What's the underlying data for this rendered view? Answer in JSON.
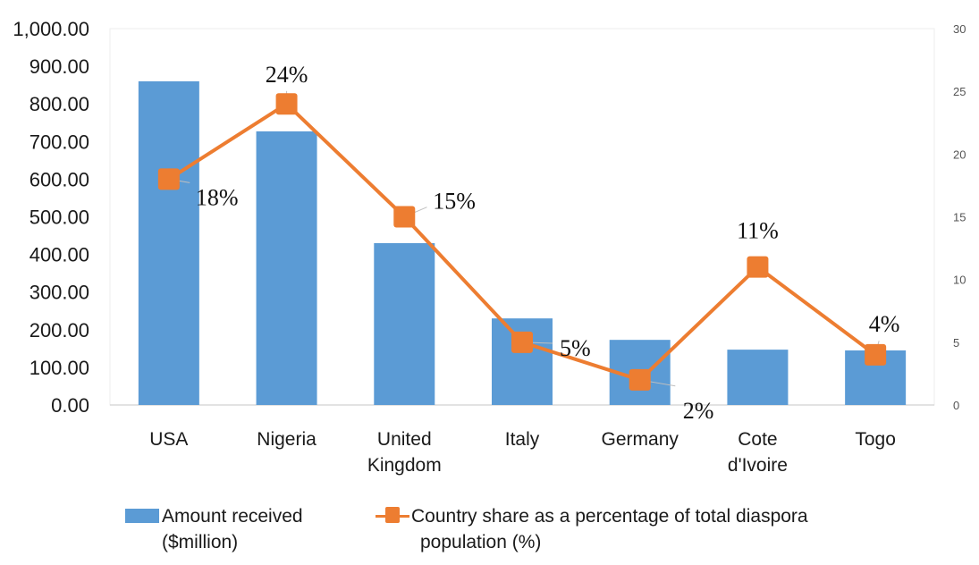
{
  "chart_data": {
    "type": "bar+line",
    "categories": [
      "USA",
      "Nigeria",
      "United Kingdom",
      "Italy",
      "Germany",
      "Cote d'Ivoire",
      "Togo"
    ],
    "category_lines": [
      [
        "USA"
      ],
      [
        "Nigeria"
      ],
      [
        "United",
        "Kingdom"
      ],
      [
        "Italy"
      ],
      [
        "Germany"
      ],
      [
        "Cote",
        "d'Ivoire"
      ],
      [
        "Togo"
      ]
    ],
    "series": [
      {
        "name": "Amount received ($million)",
        "legend_lines": [
          "Amount received",
          "($million)"
        ],
        "type": "bar",
        "axis": "left",
        "color": "#5b9bd5",
        "values": [
          860,
          727,
          430,
          230,
          173,
          147,
          145
        ]
      },
      {
        "name": "Country share as a percentage of total diaspora population (%)",
        "legend_lines": [
          "Country share as a percentage of total diaspora",
          "population (%)"
        ],
        "type": "line",
        "axis": "right",
        "color": "#ed7d31",
        "values": [
          18,
          24,
          15,
          5,
          2,
          11,
          4
        ],
        "data_labels": [
          "18%",
          "24%",
          "15%",
          "5%",
          "2%",
          "11%",
          "4%"
        ]
      }
    ],
    "ylim": [
      0,
      1000
    ],
    "y_ticks": [
      "0.00",
      "100.00",
      "200.00",
      "300.00",
      "400.00",
      "500.00",
      "600.00",
      "700.00",
      "800.00",
      "900.00",
      "1,000.00"
    ],
    "y2lim": [
      0,
      30
    ],
    "y2_ticks": [
      "0",
      "5",
      "10",
      "15",
      "20",
      "25",
      "30"
    ],
    "grid": false,
    "legend_position": "bottom"
  }
}
